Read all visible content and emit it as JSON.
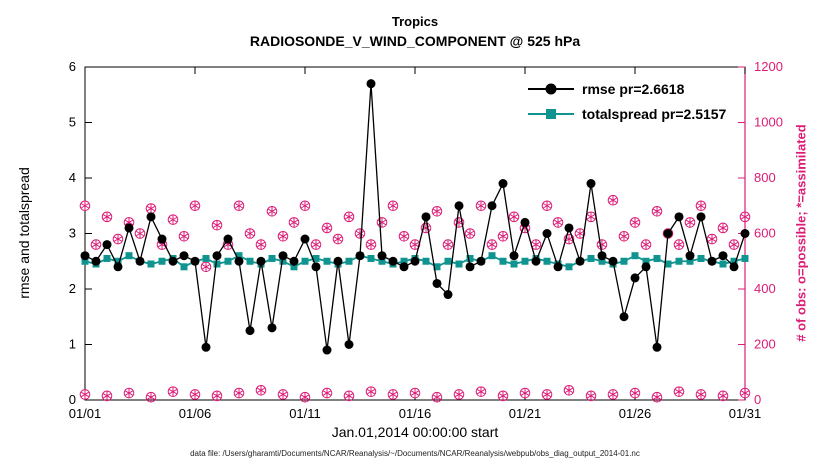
{
  "title": {
    "line1": "Tropics",
    "line2": "RADIOSONDE_V_WIND_COMPONENT @ 525 hPa"
  },
  "labels": {
    "x": "Jan.01,2014 00:00:00 start",
    "y_left": "rmse and totalspread",
    "y_right": "# of obs: o=possible; *=assimilated"
  },
  "caption": "data file: /Users/gharamti/Documents/NCAR/Reanalysis/~/Documents/NCAR/Reanalysis/webpub/obs_diag_output_2014-01.nc",
  "legend": [
    {
      "label": "rmse pr=2.6618",
      "marker": "circle-icon"
    },
    {
      "label": "totalspread pr=2.5157",
      "marker": "square-icon"
    }
  ],
  "colors": {
    "rmse": "#000000",
    "totalspread": "#0f9490",
    "obs": "#dd1c77",
    "axis": "#000000"
  },
  "chart_data": {
    "type": "line",
    "title": "Tropics / RADIOSONDE_V_WIND_COMPONENT @ 525 hPa",
    "xlabel": "Jan.01,2014 00:00:00 start",
    "ylabel_left": "rmse and totalspread",
    "ylabel_right": "# of obs: o=possible; *=assimilated",
    "x_ticks": {
      "values": [
        1,
        6,
        11,
        16,
        21,
        26,
        31
      ],
      "labels": [
        "01/01",
        "01/06",
        "01/11",
        "01/16",
        "01/21",
        "01/26",
        "01/31"
      ]
    },
    "y_left": {
      "min": 0,
      "max": 6,
      "ticks": [
        0,
        1,
        2,
        3,
        4,
        5,
        6
      ]
    },
    "y_right": {
      "min": 0,
      "max": 1200,
      "ticks": [
        0,
        200,
        400,
        600,
        800,
        1000,
        1200
      ]
    },
    "x": [
      1,
      1.5,
      2,
      2.5,
      3,
      3.5,
      4,
      4.5,
      5,
      5.5,
      6,
      6.5,
      7,
      7.5,
      8,
      8.5,
      9,
      9.5,
      10,
      10.5,
      11,
      11.5,
      12,
      12.5,
      13,
      13.5,
      14,
      14.5,
      15,
      15.5,
      16,
      16.5,
      17,
      17.5,
      18,
      18.5,
      19,
      19.5,
      20,
      20.5,
      21,
      21.5,
      22,
      22.5,
      23,
      23.5,
      24,
      24.5,
      25,
      25.5,
      26,
      26.5,
      27,
      27.5,
      28,
      28.5,
      29,
      29.5,
      30,
      30.5,
      31
    ],
    "series": [
      {
        "name": "rmse",
        "axis": "left",
        "values": [
          2.6,
          2.5,
          2.8,
          2.4,
          3.1,
          2.5,
          3.3,
          2.9,
          2.5,
          2.6,
          2.5,
          0.95,
          2.6,
          2.9,
          2.5,
          1.25,
          2.5,
          1.3,
          2.6,
          2.5,
          2.9,
          2.4,
          0.9,
          2.5,
          1.0,
          2.6,
          5.7,
          2.6,
          2.5,
          2.4,
          2.5,
          3.3,
          2.1,
          1.9,
          3.5,
          2.4,
          2.5,
          3.5,
          3.9,
          2.6,
          3.2,
          2.5,
          3.0,
          2.4,
          3.1,
          2.5,
          3.9,
          2.6,
          2.5,
          1.5,
          2.2,
          2.4,
          0.95,
          3.0,
          3.3,
          2.6,
          3.3,
          2.5,
          2.6,
          2.4,
          3.0
        ]
      },
      {
        "name": "totalspread",
        "axis": "left",
        "values": [
          2.5,
          2.45,
          2.55,
          2.5,
          2.6,
          2.5,
          2.45,
          2.5,
          2.55,
          2.4,
          2.5,
          2.55,
          2.45,
          2.5,
          2.6,
          2.5,
          2.45,
          2.55,
          2.5,
          2.4,
          2.5,
          2.55,
          2.5,
          2.45,
          2.5,
          2.6,
          2.55,
          2.5,
          2.45,
          2.5,
          2.55,
          2.5,
          2.4,
          2.5,
          2.45,
          2.55,
          2.5,
          2.6,
          2.5,
          2.45,
          2.5,
          2.55,
          2.5,
          2.45,
          2.4,
          2.5,
          2.55,
          2.5,
          2.45,
          2.5,
          2.6,
          2.5,
          2.55,
          2.45,
          2.5,
          2.5,
          2.55,
          2.5,
          2.45,
          2.5,
          2.55
        ]
      }
    ],
    "obs_scatter": {
      "axis": "right",
      "marker": "circle-asterisk",
      "high": {
        "x": [
          1,
          1.5,
          2,
          2.5,
          3,
          3.5,
          4,
          4.5,
          5,
          5.5,
          6,
          6.5,
          7,
          7.5,
          8,
          8.5,
          9,
          9.5,
          10,
          10.5,
          11,
          11.5,
          12,
          12.5,
          13,
          13.5,
          14,
          14.5,
          15,
          15.5,
          16,
          16.5,
          17,
          17.5,
          18,
          18.5,
          19,
          19.5,
          20,
          20.5,
          21,
          21.5,
          22,
          22.5,
          23,
          23.5,
          24,
          24.5,
          25,
          25.5,
          26,
          26.5,
          27,
          27.5,
          28,
          28.5,
          29,
          29.5,
          30,
          30.5,
          31
        ],
        "y": [
          700,
          560,
          660,
          580,
          640,
          600,
          690,
          560,
          650,
          590,
          700,
          480,
          630,
          560,
          700,
          600,
          560,
          680,
          590,
          640,
          700,
          560,
          620,
          580,
          660,
          600,
          560,
          640,
          700,
          590,
          560,
          620,
          680,
          560,
          640,
          600,
          700,
          560,
          590,
          660,
          620,
          560,
          700,
          640,
          580,
          600,
          660,
          560,
          720,
          590,
          640,
          560,
          680,
          600,
          560,
          640,
          700,
          580,
          620,
          560,
          660
        ]
      },
      "low": {
        "x": [
          1,
          2,
          3,
          4,
          5,
          6,
          7,
          8,
          9,
          10,
          11,
          12,
          13,
          14,
          15,
          16,
          17,
          18,
          19,
          20,
          21,
          22,
          23,
          24,
          25,
          26,
          27,
          28,
          29,
          30,
          31
        ],
        "y": [
          20,
          15,
          25,
          10,
          30,
          20,
          15,
          25,
          35,
          20,
          10,
          25,
          15,
          30,
          20,
          25,
          10,
          20,
          30,
          15,
          25,
          20,
          35,
          15,
          20,
          25,
          10,
          30,
          20,
          15,
          25
        ]
      }
    }
  }
}
